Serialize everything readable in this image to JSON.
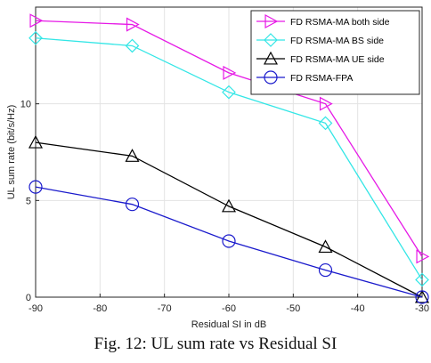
{
  "chart_data": {
    "type": "line",
    "xlabel": "Residual SI in dB",
    "ylabel": "UL sum rate (bit/s/Hz)",
    "xlim": [
      -90,
      -30
    ],
    "ylim": [
      0,
      15
    ],
    "x_ticks": [
      -90,
      -80,
      -70,
      -60,
      -50,
      -40,
      -30
    ],
    "y_ticks": [
      0,
      5,
      10
    ],
    "grid": true,
    "legend_position": "top-right",
    "x": [
      -90,
      -75,
      -60,
      -45,
      -30
    ],
    "series": [
      {
        "name": "FD RSMA-MA both side",
        "color": "#e619e6",
        "marker": "triangle-right",
        "values": [
          14.3,
          14.1,
          11.6,
          10.0,
          2.1
        ]
      },
      {
        "name": "FD RSMA-MA BS side",
        "color": "#33e6e6",
        "marker": "diamond",
        "values": [
          13.4,
          13.0,
          10.6,
          9.0,
          0.9
        ]
      },
      {
        "name": "FD RSMA-MA UE side",
        "color": "#000000",
        "marker": "triangle-up",
        "values": [
          8.0,
          7.3,
          4.7,
          2.6,
          0.0
        ]
      },
      {
        "name": "FD RSMA-FPA",
        "color": "#1a1acc",
        "marker": "circle",
        "values": [
          5.7,
          4.8,
          2.9,
          1.4,
          0.0
        ]
      }
    ]
  },
  "caption": "Fig. 12: UL sum rate vs Residual SI"
}
